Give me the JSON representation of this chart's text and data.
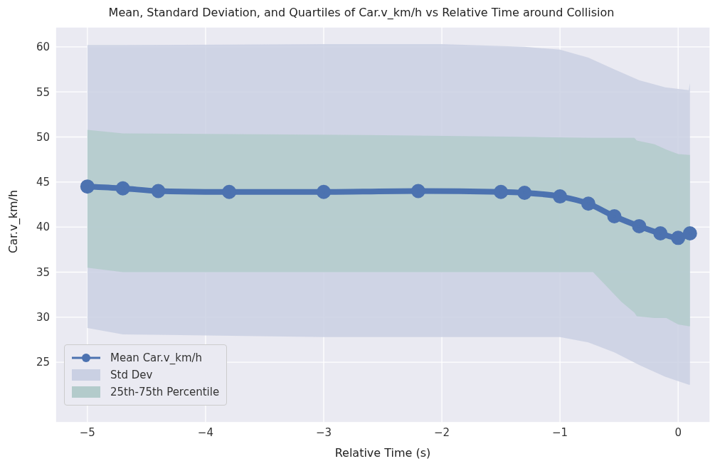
{
  "chart_data": {
    "type": "line",
    "title": "Mean, Standard Deviation, and Quartiles of Car.v_km/h vs Relative Time around Collision",
    "xlabel": "Relative Time (s)",
    "ylabel": "Car.v_km/h",
    "xlim": [
      -5.27,
      0.27
    ],
    "xticks": [
      -5,
      -4,
      -3,
      -2,
      -1,
      0
    ],
    "ylim": [
      18.3,
      62.2
    ],
    "yticks": [
      25,
      30,
      35,
      40,
      45,
      50,
      55,
      60
    ],
    "grid": true,
    "legend": "bottom left",
    "marker": "circle",
    "series": [
      {
        "name": "Mean Car.v_km/h",
        "color": "#4c72b0",
        "x": [
          -5,
          -4.7,
          -4.4,
          -3.8,
          -3,
          -2.2,
          -1.5,
          -1.3,
          -1,
          -0.76,
          -0.54,
          -0.33,
          -0.15,
          0,
          0.1
        ],
        "values": [
          44.5,
          44.3,
          44.0,
          43.9,
          43.9,
          44.0,
          43.9,
          43.8,
          43.4,
          42.6,
          41.2,
          40.1,
          39.3,
          38.8,
          39.3
        ]
      },
      {
        "name": "Std Dev",
        "type": "area",
        "marker": "none",
        "color": "#cad0e3",
        "x": [
          -5,
          -4.7,
          -3,
          -2,
          -1.3,
          -1,
          -0.76,
          -0.54,
          -0.33,
          -0.11,
          0.09,
          0.1
        ],
        "values": [
          null,
          null,
          null,
          null,
          null,
          null,
          null,
          null,
          null,
          null,
          null,
          null
        ],
        "lower": [
          28.8,
          28.1,
          27.8,
          27.8,
          27.8,
          27.8,
          27.2,
          26.1,
          24.7,
          23.4,
          22.5,
          22.5
        ],
        "upper": [
          60.2,
          60.2,
          60.3,
          60.3,
          60.0,
          59.7,
          58.8,
          57.5,
          56.3,
          55.5,
          55.2,
          56.0
        ]
      },
      {
        "name": "25th-75th Percentile",
        "type": "area",
        "marker": "none",
        "color": "#b3cbcb",
        "x": [
          -5,
          -4.7,
          -2.5,
          -1.2,
          -0.72,
          -0.48,
          -0.37,
          -0.35,
          -0.2,
          -0.1,
          0,
          0.09,
          0.1
        ],
        "values": [
          null,
          null,
          null,
          null,
          null,
          null,
          null,
          null,
          null,
          null,
          null,
          null,
          null
        ],
        "lower": [
          35.5,
          35.0,
          35.0,
          35.0,
          35.0,
          31.7,
          30.5,
          30.1,
          29.9,
          29.9,
          29.2,
          29.0,
          29.0
        ],
        "upper": [
          50.8,
          50.4,
          50.2,
          50.0,
          49.9,
          49.9,
          49.9,
          49.6,
          49.2,
          48.6,
          48.1,
          48.0,
          48.0
        ]
      }
    ]
  }
}
